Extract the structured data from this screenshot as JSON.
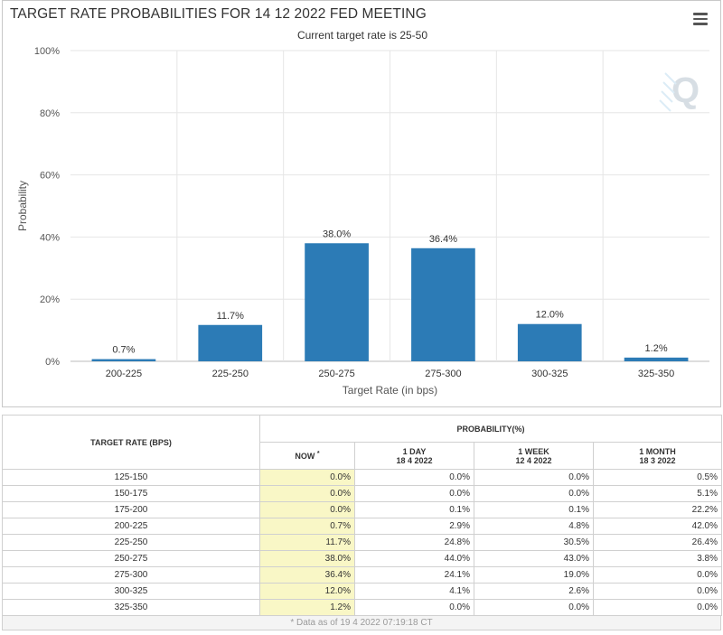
{
  "chart_data": {
    "type": "bar",
    "title": "TARGET RATE PROBABILITIES FOR 14 12 2022 FED MEETING",
    "subtitle": "Current target rate is 25-50",
    "xlabel": "Target Rate (in bps)",
    "ylabel": "Probability",
    "categories": [
      "200-225",
      "225-250",
      "250-275",
      "275-300",
      "300-325",
      "325-350"
    ],
    "values": [
      0.7,
      11.7,
      38.0,
      36.4,
      12.0,
      1.2
    ],
    "data_labels": [
      "0.7%",
      "11.7%",
      "38.0%",
      "36.4%",
      "12.0%",
      "1.2%"
    ],
    "ylim": [
      0,
      100
    ],
    "y_ticks": [
      "0%",
      "20%",
      "40%",
      "60%",
      "80%",
      "100%"
    ],
    "grid": true,
    "bar_color": "#2c7bb6"
  },
  "menu_icon": "hamburger-menu-icon",
  "watermark_icon": "q-logo-icon",
  "table": {
    "header_rate": "TARGET RATE (BPS)",
    "header_prob": "PROBABILITY(%)",
    "col_now": "NOW",
    "col_now_mark": "*",
    "col_1day": "1 DAY",
    "col_1day_date": "18 4 2022",
    "col_1week": "1 WEEK",
    "col_1week_date": "12 4 2022",
    "col_1month": "1 MONTH",
    "col_1month_date": "18 3 2022",
    "rows": [
      {
        "rate": "125-150",
        "now": "0.0%",
        "day": "0.0%",
        "week": "0.0%",
        "month": "0.5%"
      },
      {
        "rate": "150-175",
        "now": "0.0%",
        "day": "0.0%",
        "week": "0.0%",
        "month": "5.1%"
      },
      {
        "rate": "175-200",
        "now": "0.0%",
        "day": "0.1%",
        "week": "0.1%",
        "month": "22.2%"
      },
      {
        "rate": "200-225",
        "now": "0.7%",
        "day": "2.9%",
        "week": "4.8%",
        "month": "42.0%"
      },
      {
        "rate": "225-250",
        "now": "11.7%",
        "day": "24.8%",
        "week": "30.5%",
        "month": "26.4%"
      },
      {
        "rate": "250-275",
        "now": "38.0%",
        "day": "44.0%",
        "week": "43.0%",
        "month": "3.8%"
      },
      {
        "rate": "275-300",
        "now": "36.4%",
        "day": "24.1%",
        "week": "19.0%",
        "month": "0.0%"
      },
      {
        "rate": "300-325",
        "now": "12.0%",
        "day": "4.1%",
        "week": "2.6%",
        "month": "0.0%"
      },
      {
        "rate": "325-350",
        "now": "1.2%",
        "day": "0.0%",
        "week": "0.0%",
        "month": "0.0%"
      }
    ],
    "footnote": "* Data as of 19 4 2022 07:19:18 CT"
  }
}
